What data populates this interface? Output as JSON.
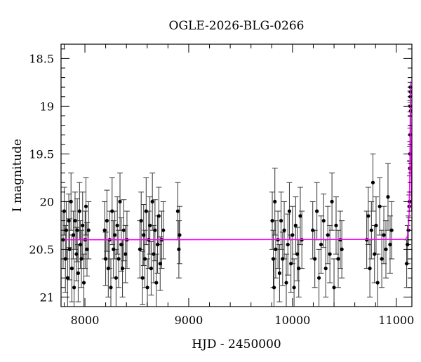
{
  "chart_data": {
    "type": "scatter",
    "title": "OGLE-2026-BLG-0266",
    "xlabel": "HJD - 2450000",
    "ylabel": "I magnitude",
    "xlim": [
      7770,
      11150
    ],
    "ylim": [
      21.1,
      18.35
    ],
    "y_inverted": true,
    "x_ticks": [
      8000,
      9000,
      10000,
      11000
    ],
    "x_tick_labels": [
      "8000",
      "9000",
      "10000",
      "11000"
    ],
    "y_ticks": [
      18.5,
      19,
      19.5,
      20,
      20.5,
      21
    ],
    "y_tick_labels": [
      "18.5",
      "19",
      "19.5",
      "20",
      "20.5",
      "21"
    ],
    "grid": false,
    "colors": {
      "points": "#000000",
      "errorbars": "#333333",
      "model": "#ff00ff"
    },
    "series": [
      {
        "type": "errorbar-scatter",
        "x": [
          7790,
          7800,
          7812,
          7820,
          7833,
          7845,
          7852,
          7866,
          7874,
          7888,
          7896,
          7905,
          7918,
          7926,
          7935,
          7948,
          7957,
          7966,
          7978,
          7990,
          8002,
          8010,
          8020,
          8035,
          8190,
          8200,
          8212,
          8225,
          8238,
          8250,
          8262,
          8275,
          8288,
          8300,
          8312,
          8325,
          8338,
          8350,
          8362,
          8374,
          8390,
          8405,
          8530,
          8542,
          8555,
          8566,
          8578,
          8590,
          8602,
          8614,
          8626,
          8638,
          8650,
          8662,
          8675,
          8688,
          8700,
          8712,
          8725,
          8740,
          8755,
          8895,
          8905,
          8912,
          9805,
          9815,
          9822,
          9830,
          9838,
          9860,
          9875,
          9890,
          9905,
          9920,
          9940,
          9955,
          9970,
          9985,
          10000,
          10015,
          10030,
          10045,
          10060,
          10075,
          10090,
          10195,
          10215,
          10235,
          10255,
          10275,
          10300,
          10320,
          10340,
          10360,
          10380,
          10400,
          10420,
          10440,
          10460,
          10475,
          10715,
          10730,
          10745,
          10760,
          10775,
          10790,
          10805,
          10820,
          10840,
          10860,
          10880,
          10900,
          10920,
          10940,
          10955,
          11100,
          11108,
          11116,
          11124,
          11128,
          11130,
          11132,
          11133,
          11134,
          11135,
          11136,
          11137,
          11138
        ],
        "y": [
          20.4,
          20.1,
          20.6,
          20.3,
          20.8,
          20.2,
          20.5,
          20.0,
          20.7,
          20.35,
          20.9,
          20.2,
          20.55,
          20.3,
          20.75,
          20.1,
          20.45,
          20.6,
          20.25,
          20.85,
          20.4,
          20.05,
          20.5,
          20.3,
          20.3,
          20.6,
          20.2,
          20.7,
          20.4,
          20.9,
          20.1,
          20.5,
          20.35,
          20.8,
          20.25,
          20.6,
          20.0,
          20.45,
          20.7,
          20.3,
          20.55,
          20.4,
          20.5,
          20.2,
          20.8,
          20.35,
          20.6,
          20.1,
          20.9,
          20.4,
          20.25,
          20.7,
          20.0,
          20.55,
          20.3,
          20.85,
          20.45,
          20.15,
          20.65,
          20.4,
          20.3,
          20.1,
          20.5,
          20.35,
          20.2,
          20.6,
          20.9,
          20.0,
          20.5,
          20.4,
          20.75,
          20.2,
          20.6,
          20.3,
          20.85,
          20.45,
          20.1,
          20.65,
          20.35,
          20.9,
          20.25,
          20.55,
          20.7,
          20.15,
          20.4,
          20.3,
          20.6,
          20.1,
          20.8,
          20.45,
          20.2,
          20.7,
          20.35,
          20.55,
          20.0,
          20.9,
          20.25,
          20.6,
          20.4,
          20.5,
          20.4,
          20.15,
          20.7,
          20.3,
          19.8,
          20.55,
          20.25,
          20.85,
          20.05,
          20.6,
          20.35,
          20.5,
          19.95,
          20.45,
          20.3,
          20.65,
          20.45,
          20.3,
          20.05,
          20.0,
          19.65,
          19.5,
          19.3,
          19.0,
          18.9,
          18.8,
          18.85,
          19.05
        ],
        "err": [
          0.3,
          0.25,
          0.35,
          0.3,
          0.3,
          0.28,
          0.32,
          0.3,
          0.35,
          0.25,
          0.3,
          0.3,
          0.28,
          0.33,
          0.3,
          0.3,
          0.25,
          0.3,
          0.35,
          0.3,
          0.3,
          0.3,
          0.28,
          0.3,
          0.3,
          0.28,
          0.32,
          0.3,
          0.3,
          0.3,
          0.35,
          0.3,
          0.25,
          0.3,
          0.3,
          0.3,
          0.3,
          0.28,
          0.3,
          0.32,
          0.3,
          0.3,
          0.3,
          0.3,
          0.28,
          0.32,
          0.3,
          0.35,
          0.3,
          0.3,
          0.3,
          0.28,
          0.3,
          0.3,
          0.32,
          0.3,
          0.3,
          0.3,
          0.28,
          0.3,
          0.3,
          0.3,
          0.3,
          0.3,
          0.3,
          0.3,
          0.3,
          0.35,
          0.3,
          0.3,
          0.3,
          0.3,
          0.28,
          0.3,
          0.3,
          0.32,
          0.3,
          0.3,
          0.3,
          0.3,
          0.3,
          0.28,
          0.3,
          0.3,
          0.3,
          0.3,
          0.3,
          0.3,
          0.3,
          0.3,
          0.28,
          0.3,
          0.3,
          0.3,
          0.3,
          0.3,
          0.3,
          0.3,
          0.3,
          0.3,
          0.3,
          0.3,
          0.3,
          0.3,
          0.3,
          0.3,
          0.3,
          0.3,
          0.3,
          0.3,
          0.3,
          0.3,
          0.35,
          0.3,
          0.3,
          0.25,
          0.2,
          0.15,
          0.12,
          0.1,
          0.08,
          0.08,
          0.07,
          0.06,
          0.06,
          0.05,
          0.05,
          0.06
        ]
      },
      {
        "type": "line",
        "x": [
          7770,
          11080,
          11100,
          11110,
          11120,
          11125,
          11130,
          11133,
          11136,
          11139,
          11142,
          11145,
          11148
        ],
        "y": [
          20.4,
          20.396,
          20.38,
          20.35,
          20.23,
          20.05,
          19.62,
          19.15,
          18.74,
          19.15,
          19.62,
          19.92,
          20.1
        ]
      }
    ]
  }
}
